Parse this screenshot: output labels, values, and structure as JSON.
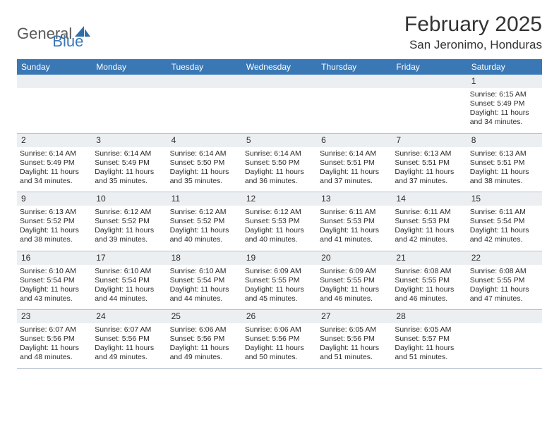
{
  "branding": {
    "text1": "General",
    "text2": "Blue",
    "logo_fill": "#2f6fa8"
  },
  "header": {
    "month_title": "February 2025",
    "location": "San Jeronimo, Honduras"
  },
  "colors": {
    "header_band": "#3a78b5",
    "daynum_band": "#eceff1",
    "week_border": "#b8c4d0",
    "text_dark": "#2a2a2a",
    "logo_gray": "#5a5a5a",
    "logo_blue": "#3a78b5"
  },
  "weekdays": [
    "Sunday",
    "Monday",
    "Tuesday",
    "Wednesday",
    "Thursday",
    "Friday",
    "Saturday"
  ],
  "weeks": [
    [
      {
        "day": "",
        "lines": []
      },
      {
        "day": "",
        "lines": []
      },
      {
        "day": "",
        "lines": []
      },
      {
        "day": "",
        "lines": []
      },
      {
        "day": "",
        "lines": []
      },
      {
        "day": "",
        "lines": []
      },
      {
        "day": "1",
        "lines": [
          "Sunrise: 6:15 AM",
          "Sunset: 5:49 PM",
          "Daylight: 11 hours",
          "and 34 minutes."
        ]
      }
    ],
    [
      {
        "day": "2",
        "lines": [
          "Sunrise: 6:14 AM",
          "Sunset: 5:49 PM",
          "Daylight: 11 hours",
          "and 34 minutes."
        ]
      },
      {
        "day": "3",
        "lines": [
          "Sunrise: 6:14 AM",
          "Sunset: 5:49 PM",
          "Daylight: 11 hours",
          "and 35 minutes."
        ]
      },
      {
        "day": "4",
        "lines": [
          "Sunrise: 6:14 AM",
          "Sunset: 5:50 PM",
          "Daylight: 11 hours",
          "and 35 minutes."
        ]
      },
      {
        "day": "5",
        "lines": [
          "Sunrise: 6:14 AM",
          "Sunset: 5:50 PM",
          "Daylight: 11 hours",
          "and 36 minutes."
        ]
      },
      {
        "day": "6",
        "lines": [
          "Sunrise: 6:14 AM",
          "Sunset: 5:51 PM",
          "Daylight: 11 hours",
          "and 37 minutes."
        ]
      },
      {
        "day": "7",
        "lines": [
          "Sunrise: 6:13 AM",
          "Sunset: 5:51 PM",
          "Daylight: 11 hours",
          "and 37 minutes."
        ]
      },
      {
        "day": "8",
        "lines": [
          "Sunrise: 6:13 AM",
          "Sunset: 5:51 PM",
          "Daylight: 11 hours",
          "and 38 minutes."
        ]
      }
    ],
    [
      {
        "day": "9",
        "lines": [
          "Sunrise: 6:13 AM",
          "Sunset: 5:52 PM",
          "Daylight: 11 hours",
          "and 38 minutes."
        ]
      },
      {
        "day": "10",
        "lines": [
          "Sunrise: 6:12 AM",
          "Sunset: 5:52 PM",
          "Daylight: 11 hours",
          "and 39 minutes."
        ]
      },
      {
        "day": "11",
        "lines": [
          "Sunrise: 6:12 AM",
          "Sunset: 5:52 PM",
          "Daylight: 11 hours",
          "and 40 minutes."
        ]
      },
      {
        "day": "12",
        "lines": [
          "Sunrise: 6:12 AM",
          "Sunset: 5:53 PM",
          "Daylight: 11 hours",
          "and 40 minutes."
        ]
      },
      {
        "day": "13",
        "lines": [
          "Sunrise: 6:11 AM",
          "Sunset: 5:53 PM",
          "Daylight: 11 hours",
          "and 41 minutes."
        ]
      },
      {
        "day": "14",
        "lines": [
          "Sunrise: 6:11 AM",
          "Sunset: 5:53 PM",
          "Daylight: 11 hours",
          "and 42 minutes."
        ]
      },
      {
        "day": "15",
        "lines": [
          "Sunrise: 6:11 AM",
          "Sunset: 5:54 PM",
          "Daylight: 11 hours",
          "and 42 minutes."
        ]
      }
    ],
    [
      {
        "day": "16",
        "lines": [
          "Sunrise: 6:10 AM",
          "Sunset: 5:54 PM",
          "Daylight: 11 hours",
          "and 43 minutes."
        ]
      },
      {
        "day": "17",
        "lines": [
          "Sunrise: 6:10 AM",
          "Sunset: 5:54 PM",
          "Daylight: 11 hours",
          "and 44 minutes."
        ]
      },
      {
        "day": "18",
        "lines": [
          "Sunrise: 6:10 AM",
          "Sunset: 5:54 PM",
          "Daylight: 11 hours",
          "and 44 minutes."
        ]
      },
      {
        "day": "19",
        "lines": [
          "Sunrise: 6:09 AM",
          "Sunset: 5:55 PM",
          "Daylight: 11 hours",
          "and 45 minutes."
        ]
      },
      {
        "day": "20",
        "lines": [
          "Sunrise: 6:09 AM",
          "Sunset: 5:55 PM",
          "Daylight: 11 hours",
          "and 46 minutes."
        ]
      },
      {
        "day": "21",
        "lines": [
          "Sunrise: 6:08 AM",
          "Sunset: 5:55 PM",
          "Daylight: 11 hours",
          "and 46 minutes."
        ]
      },
      {
        "day": "22",
        "lines": [
          "Sunrise: 6:08 AM",
          "Sunset: 5:55 PM",
          "Daylight: 11 hours",
          "and 47 minutes."
        ]
      }
    ],
    [
      {
        "day": "23",
        "lines": [
          "Sunrise: 6:07 AM",
          "Sunset: 5:56 PM",
          "Daylight: 11 hours",
          "and 48 minutes."
        ]
      },
      {
        "day": "24",
        "lines": [
          "Sunrise: 6:07 AM",
          "Sunset: 5:56 PM",
          "Daylight: 11 hours",
          "and 49 minutes."
        ]
      },
      {
        "day": "25",
        "lines": [
          "Sunrise: 6:06 AM",
          "Sunset: 5:56 PM",
          "Daylight: 11 hours",
          "and 49 minutes."
        ]
      },
      {
        "day": "26",
        "lines": [
          "Sunrise: 6:06 AM",
          "Sunset: 5:56 PM",
          "Daylight: 11 hours",
          "and 50 minutes."
        ]
      },
      {
        "day": "27",
        "lines": [
          "Sunrise: 6:05 AM",
          "Sunset: 5:56 PM",
          "Daylight: 11 hours",
          "and 51 minutes."
        ]
      },
      {
        "day": "28",
        "lines": [
          "Sunrise: 6:05 AM",
          "Sunset: 5:57 PM",
          "Daylight: 11 hours",
          "and 51 minutes."
        ]
      },
      {
        "day": "",
        "lines": []
      }
    ]
  ]
}
